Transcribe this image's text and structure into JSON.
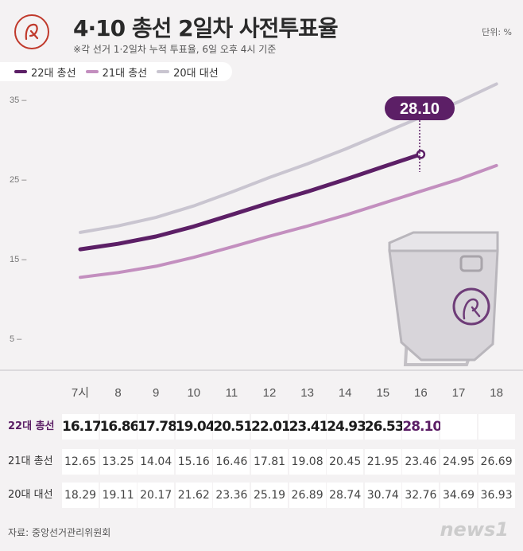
{
  "header": {
    "title": "4·10 총선 2일차 사전투표율",
    "subtitle": "※각 선거 1·2일차 누적 투표율, 6일 오후 4시 기준",
    "unit": "단위: %"
  },
  "legend": [
    {
      "label": "22대 총선",
      "color": "#5c1f66"
    },
    {
      "label": "21대 총선",
      "color": "#c38fbf"
    },
    {
      "label": "20대 대선",
      "color": "#c9c5d0"
    }
  ],
  "callout": "28.10",
  "chart_data": {
    "type": "line",
    "categories": [
      "7시",
      "8",
      "9",
      "10",
      "11",
      "12",
      "13",
      "14",
      "15",
      "16",
      "17",
      "18"
    ],
    "yticks": [
      5,
      15,
      25,
      35
    ],
    "ylim": [
      0,
      38
    ],
    "series": [
      {
        "name": "22대 총선",
        "color": "#5c1f66",
        "values": [
          16.17,
          16.86,
          17.78,
          19.04,
          20.51,
          22.01,
          23.41,
          24.93,
          26.53,
          28.1,
          null,
          null
        ]
      },
      {
        "name": "21대 총선",
        "color": "#c38fbf",
        "values": [
          12.65,
          13.25,
          14.04,
          15.16,
          16.46,
          17.81,
          19.08,
          20.45,
          21.95,
          23.46,
          24.95,
          26.69
        ]
      },
      {
        "name": "20대 대선",
        "color": "#c9c5d0",
        "values": [
          18.29,
          19.11,
          20.17,
          21.62,
          23.36,
          25.19,
          26.89,
          28.74,
          30.74,
          32.76,
          34.69,
          36.93
        ]
      }
    ]
  },
  "table": {
    "rows": [
      {
        "label": "22대 총선",
        "values": [
          "16.17",
          "16.86",
          "17.78",
          "19.04",
          "20.51",
          "22.01",
          "23.41",
          "24.93",
          "26.53",
          "28.10",
          "",
          ""
        ]
      },
      {
        "label": "21대 총선",
        "values": [
          "12.65",
          "13.25",
          "14.04",
          "15.16",
          "16.46",
          "17.81",
          "19.08",
          "20.45",
          "21.95",
          "23.46",
          "24.95",
          "26.69"
        ]
      },
      {
        "label": "20대 대선",
        "values": [
          "18.29",
          "19.11",
          "20.17",
          "21.62",
          "23.36",
          "25.19",
          "26.89",
          "28.74",
          "30.74",
          "32.76",
          "34.69",
          "36.93"
        ]
      }
    ]
  },
  "footer": {
    "source": "자료: 중앙선거관리위원회",
    "brand": "news1"
  }
}
